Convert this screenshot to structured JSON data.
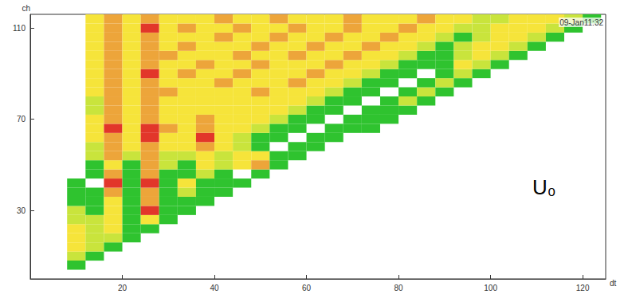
{
  "chart_data": {
    "type": "heatmap",
    "title": "09-Jan11:32",
    "xlabel": "dt",
    "ylabel": "ch",
    "annotations": [
      "U₀"
    ],
    "xlim": [
      0,
      125
    ],
    "ylim": [
      0,
      116
    ],
    "xticks": [
      20,
      40,
      60,
      80,
      100,
      120
    ],
    "yticks": [
      30,
      70,
      110
    ],
    "grid": false,
    "xbins": [
      0,
      4,
      8,
      12,
      16,
      20,
      24,
      28,
      32,
      36,
      40,
      44,
      48,
      52,
      56,
      60,
      64,
      68,
      72,
      76,
      80,
      84,
      88,
      92,
      96,
      100,
      104,
      108,
      112,
      116,
      120,
      124,
      128
    ],
    "ybins": [
      0,
      4,
      8,
      12,
      16,
      20,
      24,
      28,
      32,
      36,
      40,
      44,
      48,
      52,
      56,
      60,
      64,
      68,
      72,
      76,
      80,
      84,
      88,
      92,
      96,
      100,
      104,
      108,
      112,
      116
    ],
    "counts": [
      [
        0,
        0,
        0,
        0,
        0,
        0,
        0,
        0,
        0,
        0,
        0,
        0,
        0,
        0,
        0,
        0,
        0,
        0,
        0,
        0,
        0,
        0,
        0,
        0,
        0,
        0,
        0,
        0,
        0,
        0,
        0,
        0
      ],
      [
        0,
        0,
        1,
        0,
        0,
        0,
        0,
        0,
        0,
        0,
        0,
        0,
        0,
        0,
        0,
        0,
        0,
        0,
        0,
        0,
        0,
        0,
        0,
        0,
        0,
        0,
        0,
        0,
        0,
        0,
        0,
        0
      ],
      [
        0,
        0,
        2,
        1,
        0,
        0,
        0,
        0,
        0,
        0,
        0,
        0,
        0,
        0,
        0,
        0,
        0,
        0,
        0,
        0,
        0,
        0,
        0,
        0,
        0,
        0,
        0,
        0,
        0,
        0,
        0,
        0
      ],
      [
        0,
        0,
        3,
        2,
        1,
        0,
        0,
        0,
        0,
        0,
        0,
        0,
        0,
        0,
        0,
        0,
        0,
        0,
        0,
        0,
        0,
        0,
        0,
        0,
        0,
        0,
        0,
        0,
        0,
        0,
        0,
        0
      ],
      [
        0,
        0,
        3,
        2,
        2,
        1,
        0,
        0,
        0,
        0,
        0,
        0,
        0,
        0,
        0,
        0,
        0,
        0,
        0,
        0,
        0,
        0,
        0,
        0,
        0,
        0,
        0,
        0,
        0,
        0,
        0,
        0
      ],
      [
        0,
        0,
        3,
        2,
        3,
        1,
        1,
        0,
        0,
        0,
        0,
        0,
        0,
        0,
        0,
        0,
        0,
        0,
        0,
        0,
        0,
        0,
        0,
        0,
        0,
        0,
        0,
        0,
        0,
        0,
        0,
        0
      ],
      [
        0,
        0,
        2,
        2,
        3,
        1,
        3,
        1,
        0,
        0,
        0,
        0,
        0,
        0,
        0,
        0,
        0,
        0,
        0,
        0,
        0,
        0,
        0,
        0,
        0,
        0,
        0,
        0,
        0,
        0,
        0,
        0
      ],
      [
        0,
        0,
        2,
        1,
        3,
        1,
        5,
        1,
        1,
        0,
        0,
        0,
        0,
        0,
        0,
        0,
        0,
        0,
        0,
        0,
        0,
        0,
        0,
        0,
        0,
        0,
        0,
        0,
        0,
        0,
        0,
        0
      ],
      [
        0,
        0,
        1,
        1,
        3,
        1,
        4,
        1,
        1,
        1,
        0,
        0,
        0,
        0,
        0,
        0,
        0,
        0,
        0,
        0,
        0,
        0,
        0,
        0,
        0,
        0,
        0,
        0,
        0,
        0,
        0,
        0
      ],
      [
        0,
        0,
        1,
        1,
        4,
        1,
        4,
        1,
        2,
        1,
        1,
        0,
        0,
        0,
        0,
        0,
        0,
        0,
        0,
        0,
        0,
        0,
        0,
        0,
        0,
        0,
        0,
        0,
        0,
        0,
        0,
        0
      ],
      [
        0,
        0,
        1,
        0,
        5,
        1,
        5,
        1,
        3,
        1,
        1,
        1,
        0,
        0,
        0,
        0,
        0,
        0,
        0,
        0,
        0,
        0,
        0,
        0,
        0,
        0,
        0,
        0,
        0,
        0,
        0,
        0
      ],
      [
        0,
        0,
        0,
        1,
        4,
        1,
        4,
        1,
        1,
        2,
        1,
        0,
        1,
        0,
        0,
        0,
        0,
        0,
        0,
        0,
        0,
        0,
        0,
        0,
        0,
        0,
        0,
        0,
        0,
        0,
        0,
        0
      ],
      [
        0,
        0,
        0,
        1,
        3,
        1,
        4,
        2,
        1,
        3,
        2,
        3,
        4,
        1,
        0,
        0,
        0,
        0,
        0,
        0,
        0,
        0,
        0,
        0,
        0,
        0,
        0,
        0,
        0,
        0,
        0,
        0
      ],
      [
        0,
        0,
        0,
        2,
        4,
        2,
        4,
        2,
        2,
        3,
        2,
        3,
        3,
        1,
        1,
        0,
        0,
        0,
        0,
        0,
        0,
        0,
        0,
        0,
        0,
        0,
        0,
        0,
        0,
        0,
        0,
        0
      ],
      [
        0,
        0,
        0,
        2,
        4,
        3,
        4,
        3,
        3,
        4,
        3,
        2,
        1,
        0,
        1,
        1,
        0,
        0,
        0,
        0,
        0,
        0,
        0,
        0,
        0,
        0,
        0,
        0,
        0,
        0,
        0,
        0
      ],
      [
        0,
        0,
        0,
        3,
        4,
        3,
        5,
        3,
        3,
        5,
        3,
        2,
        1,
        1,
        0,
        1,
        1,
        0,
        0,
        0,
        0,
        0,
        0,
        0,
        0,
        0,
        0,
        0,
        0,
        0,
        0,
        0
      ],
      [
        0,
        0,
        0,
        3,
        5,
        3,
        5,
        4,
        3,
        4,
        3,
        3,
        2,
        1,
        1,
        0,
        1,
        1,
        1,
        0,
        0,
        0,
        0,
        0,
        0,
        0,
        0,
        0,
        0,
        0,
        0,
        0
      ],
      [
        0,
        0,
        0,
        3,
        4,
        3,
        4,
        3,
        3,
        4,
        3,
        3,
        3,
        2,
        1,
        1,
        0,
        1,
        1,
        1,
        0,
        0,
        0,
        0,
        0,
        0,
        0,
        0,
        0,
        0,
        0,
        0
      ],
      [
        0,
        0,
        0,
        2,
        4,
        3,
        4,
        3,
        3,
        3,
        3,
        3,
        3,
        3,
        2,
        1,
        1,
        0,
        1,
        1,
        1,
        0,
        0,
        0,
        0,
        0,
        0,
        0,
        0,
        0,
        0,
        0
      ],
      [
        0,
        0,
        0,
        2,
        4,
        3,
        4,
        3,
        3,
        3,
        3,
        3,
        3,
        3,
        3,
        2,
        1,
        1,
        0,
        1,
        2,
        1,
        0,
        0,
        0,
        0,
        0,
        0,
        0,
        0,
        0,
        0
      ],
      [
        0,
        0,
        0,
        3,
        4,
        3,
        4,
        4,
        3,
        3,
        3,
        3,
        4,
        3,
        3,
        3,
        2,
        1,
        1,
        0,
        1,
        2,
        1,
        0,
        0,
        0,
        0,
        0,
        0,
        0,
        0,
        0
      ],
      [
        0,
        0,
        0,
        3,
        4,
        3,
        4,
        3,
        3,
        3,
        4,
        3,
        3,
        3,
        4,
        3,
        3,
        2,
        1,
        1,
        0,
        1,
        2,
        1,
        0,
        0,
        0,
        0,
        0,
        0,
        0,
        0
      ],
      [
        0,
        0,
        0,
        3,
        4,
        3,
        5,
        3,
        4,
        3,
        3,
        4,
        3,
        3,
        3,
        4,
        3,
        3,
        2,
        1,
        1,
        0,
        1,
        2,
        1,
        0,
        0,
        0,
        0,
        0,
        0,
        0
      ],
      [
        0,
        0,
        0,
        3,
        4,
        3,
        4,
        3,
        3,
        4,
        3,
        3,
        4,
        3,
        3,
        3,
        4,
        3,
        3,
        2,
        1,
        1,
        1,
        3,
        2,
        1,
        0,
        0,
        0,
        0,
        0,
        0
      ],
      [
        0,
        0,
        0,
        3,
        4,
        3,
        4,
        4,
        3,
        3,
        3,
        4,
        3,
        3,
        4,
        3,
        3,
        4,
        3,
        3,
        2,
        1,
        1,
        2,
        3,
        2,
        1,
        0,
        0,
        0,
        0,
        0
      ],
      [
        0,
        0,
        0,
        3,
        4,
        3,
        4,
        3,
        4,
        3,
        3,
        3,
        4,
        3,
        3,
        4,
        3,
        3,
        4,
        3,
        3,
        2,
        1,
        2,
        3,
        3,
        2,
        1,
        0,
        0,
        0,
        0
      ],
      [
        0,
        0,
        0,
        3,
        4,
        3,
        4,
        3,
        3,
        3,
        4,
        3,
        3,
        4,
        3,
        3,
        4,
        3,
        3,
        4,
        3,
        3,
        2,
        1,
        2,
        3,
        3,
        2,
        1,
        0,
        0,
        0
      ],
      [
        0,
        0,
        0,
        3,
        4,
        3,
        5,
        3,
        4,
        3,
        3,
        4,
        3,
        3,
        4,
        3,
        3,
        4,
        3,
        3,
        4,
        3,
        3,
        2,
        2,
        3,
        3,
        3,
        2,
        1,
        0,
        0
      ],
      [
        0,
        0,
        0,
        3,
        4,
        3,
        4,
        3,
        3,
        3,
        4,
        3,
        3,
        4,
        3,
        3,
        3,
        4,
        3,
        3,
        3,
        4,
        3,
        3,
        2,
        2,
        3,
        3,
        3,
        2,
        1,
        0
      ]
    ]
  }
}
